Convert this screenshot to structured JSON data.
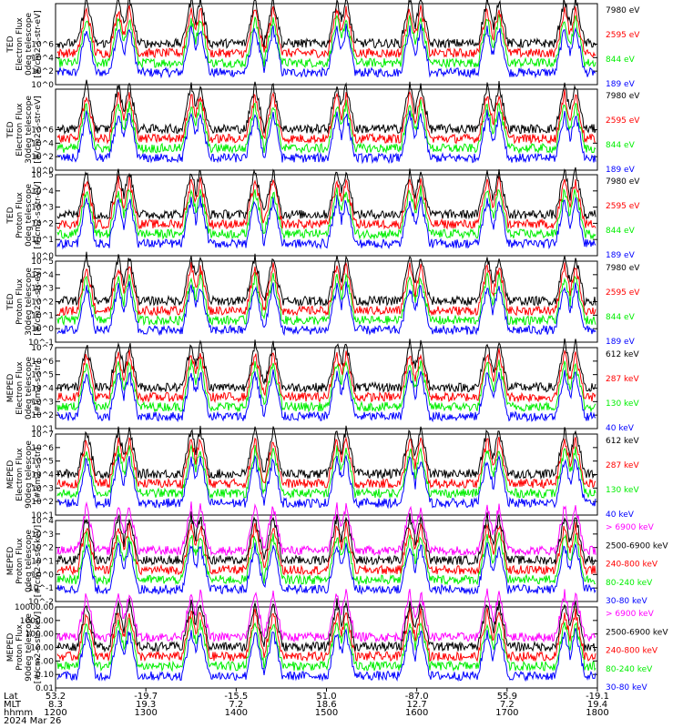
{
  "colors": {
    "blue": "#0000ff",
    "red": "#ff0000",
    "green": "#00ee00",
    "black": "#000000",
    "magenta": "#ff00ff"
  },
  "chart_data": [
    {
      "type": "line",
      "instrument": "TED",
      "ylabel": [
        "TED",
        "Electron Flux",
        "0deg telescope",
        "[#/cm2-s-str-eV]"
      ],
      "scale": "log",
      "ylim": [
        1,
        1000000
      ],
      "yticks": [
        "10^0",
        "10^2",
        "10^4",
        "10^6"
      ],
      "series": [
        {
          "name": "7980 eV",
          "color": "black",
          "values": []
        },
        {
          "name": "2595 eV",
          "color": "red",
          "values": []
        },
        {
          "name": "844 eV",
          "color": "green",
          "values": []
        },
        {
          "name": "189 eV",
          "color": "blue",
          "values": []
        }
      ]
    },
    {
      "type": "line",
      "instrument": "TED",
      "ylabel": [
        "TED",
        "Electron Flux",
        "30deg telescope",
        "[#/cm2-s-str-eV]"
      ],
      "scale": "log",
      "ylim": [
        1,
        1000000
      ],
      "yticks": [
        "10^0",
        "10^2",
        "10^4",
        "10^6"
      ],
      "series": [
        {
          "name": "7980 eV",
          "color": "black",
          "values": []
        },
        {
          "name": "2595 eV",
          "color": "red",
          "values": []
        },
        {
          "name": "844 eV",
          "color": "green",
          "values": []
        },
        {
          "name": "189 eV",
          "color": "blue",
          "values": []
        }
      ]
    },
    {
      "type": "line",
      "instrument": "TED",
      "ylabel": [
        "TED",
        "Proton Flux",
        "0deg telescope",
        "[#/cm2-s-str-eV]"
      ],
      "scale": "log",
      "ylim": [
        1,
        100000
      ],
      "yticks": [
        "10^0",
        "10^1",
        "10^2",
        "10^3",
        "10^4",
        "10^5"
      ],
      "series": [
        {
          "name": "7980 eV",
          "color": "black",
          "values": []
        },
        {
          "name": "2595 eV",
          "color": "red",
          "values": []
        },
        {
          "name": "844 eV",
          "color": "green",
          "values": []
        },
        {
          "name": "189 eV",
          "color": "blue",
          "values": []
        }
      ]
    },
    {
      "type": "line",
      "instrument": "TED",
      "ylabel": [
        "TED",
        "Proton Flux",
        "30deg telescope",
        "[#/cm2-s-str-eV]"
      ],
      "scale": "log",
      "ylim": [
        0.1,
        100000
      ],
      "yticks": [
        "10^-1",
        "10^0",
        "10^1",
        "10^2",
        "10^3",
        "10^4",
        "10^5"
      ],
      "series": [
        {
          "name": "7980 eV",
          "color": "black",
          "values": []
        },
        {
          "name": "2595 eV",
          "color": "red",
          "values": []
        },
        {
          "name": "844 eV",
          "color": "green",
          "values": []
        },
        {
          "name": "189 eV",
          "color": "blue",
          "values": []
        }
      ]
    },
    {
      "type": "line",
      "instrument": "MEPED",
      "ylabel": [
        "MEPED",
        "Electron Flux",
        "0deg telescope",
        "[#/cm2-s-str]"
      ],
      "scale": "log",
      "ylim": [
        10,
        10000000
      ],
      "yticks": [
        "10^1",
        "10^2",
        "10^3",
        "10^4",
        "10^5",
        "10^6",
        "10^7"
      ],
      "series": [
        {
          "name": "612 keV",
          "color": "black",
          "values": []
        },
        {
          "name": "287 keV",
          "color": "red",
          "values": []
        },
        {
          "name": "130 keV",
          "color": "green",
          "values": []
        },
        {
          "name": "40 keV",
          "color": "blue",
          "values": []
        }
      ]
    },
    {
      "type": "line",
      "instrument": "MEPED",
      "ylabel": [
        "MEPED",
        "Electron Flux",
        "90deg telescope",
        "[#/cm2-s-str]"
      ],
      "scale": "log",
      "ylim": [
        10,
        10000000
      ],
      "yticks": [
        "10^1",
        "10^2",
        "10^3",
        "10^4",
        "10^5",
        "10^6",
        "10^7"
      ],
      "series": [
        {
          "name": "612 keV",
          "color": "black",
          "values": []
        },
        {
          "name": "287 keV",
          "color": "red",
          "values": []
        },
        {
          "name": "130 keV",
          "color": "green",
          "values": []
        },
        {
          "name": "40 keV",
          "color": "blue",
          "values": []
        }
      ]
    },
    {
      "type": "line",
      "instrument": "MEPED",
      "ylabel": [
        "MEPED",
        "Proton Flux",
        "0deg telescope",
        "[#/cm2-s-str-keV]"
      ],
      "scale": "log",
      "ylim": [
        0.01,
        10000
      ],
      "yticks": [
        "10^-2",
        "10^-1",
        "10^0",
        "10^1",
        "10^2",
        "10^3",
        "10^4"
      ],
      "series": [
        {
          "name": "> 6900 keV",
          "color": "magenta",
          "values": []
        },
        {
          "name": "2500-6900 keV",
          "color": "black",
          "values": []
        },
        {
          "name": "240-800 keV",
          "color": "red",
          "values": []
        },
        {
          "name": "80-240 keV",
          "color": "green",
          "values": []
        },
        {
          "name": "30-80 keV",
          "color": "blue",
          "values": []
        }
      ]
    },
    {
      "type": "line",
      "instrument": "MEPED",
      "ylabel": [
        "MEPED",
        "Proton Flux",
        "90deg telescope",
        "[#/cm2-s-str-keV]"
      ],
      "scale": "log",
      "ylim": [
        0.01,
        10000
      ],
      "yticks": [
        "0.01",
        "0.10",
        "1.00",
        "10.00",
        "100.00",
        "1000.00",
        "10000.00"
      ],
      "series": [
        {
          "name": "> 6900 keV",
          "color": "magenta",
          "values": []
        },
        {
          "name": "2500-6900 keV",
          "color": "black",
          "values": []
        },
        {
          "name": "240-800 keV",
          "color": "red",
          "values": []
        },
        {
          "name": "80-240 keV",
          "color": "green",
          "values": []
        },
        {
          "name": "30-80 keV",
          "color": "blue",
          "values": []
        }
      ]
    }
  ],
  "x_axis": {
    "row_labels": [
      "Lat",
      "MLT",
      "hhmm",
      "2024 Mar 26"
    ],
    "ticks": [
      {
        "lat": "53.2",
        "mlt": "8.3",
        "hhmm": "1200"
      },
      {
        "lat": "-19.7",
        "mlt": "19.3",
        "hhmm": "1300"
      },
      {
        "lat": "-15.5",
        "mlt": "7.2",
        "hhmm": "1400"
      },
      {
        "lat": "51.0",
        "mlt": "18.6",
        "hhmm": "1500"
      },
      {
        "lat": "-87.0",
        "mlt": "12.7",
        "hhmm": "1600"
      },
      {
        "lat": "55.9",
        "mlt": "7.2",
        "hhmm": "1700"
      },
      {
        "lat": "-19.1",
        "mlt": "19.4",
        "hhmm": "1800"
      }
    ]
  }
}
